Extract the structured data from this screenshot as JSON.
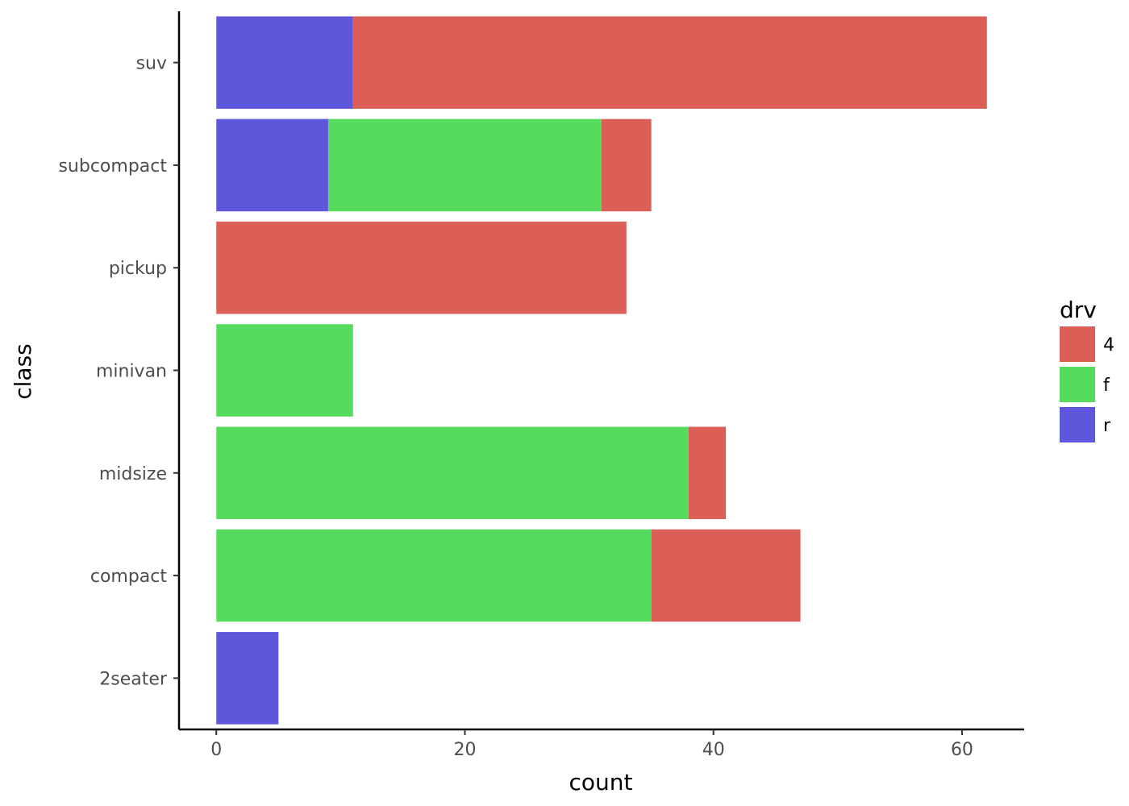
{
  "chart_data": {
    "type": "bar",
    "orientation": "horizontal",
    "stacked": true,
    "title": "",
    "xlabel": "count",
    "ylabel": "class",
    "categories": [
      "2seater",
      "compact",
      "midsize",
      "minivan",
      "pickup",
      "subcompact",
      "suv"
    ],
    "series": [
      {
        "name": "4",
        "color": "#db5f57",
        "values": [
          0,
          12,
          3,
          0,
          33,
          4,
          51
        ]
      },
      {
        "name": "f",
        "color": "#57db5f",
        "values": [
          0,
          35,
          38,
          11,
          0,
          22,
          0
        ]
      },
      {
        "name": "r",
        "color": "#5f57db",
        "values": [
          5,
          0,
          0,
          0,
          0,
          9,
          11
        ]
      }
    ],
    "stack_order_from_zero": [
      "r",
      "f",
      "4"
    ],
    "xlim": [
      -3,
      65
    ],
    "xticks": [
      0,
      20,
      40,
      60
    ],
    "grid": false,
    "legend": {
      "title": "drv",
      "position": "right"
    }
  }
}
